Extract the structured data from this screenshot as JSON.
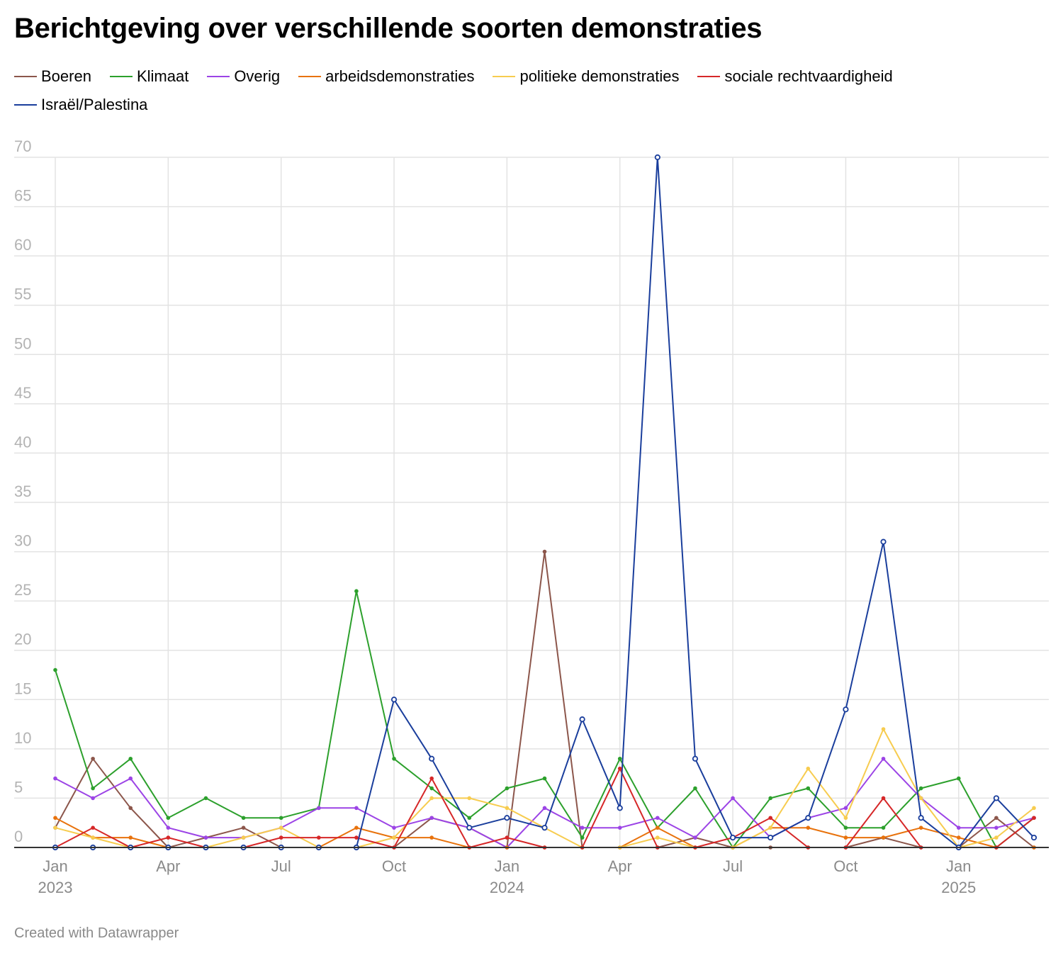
{
  "title": "Berichtgeving over verschillende soorten demonstraties",
  "footer": "Created with Datawrapper",
  "chart_data": {
    "type": "line",
    "title": "Berichtgeving over verschillende soorten demonstraties",
    "xlabel": "",
    "ylabel": "",
    "ylim": [
      0,
      70
    ],
    "yticks": [
      0,
      5,
      10,
      15,
      20,
      25,
      30,
      35,
      40,
      45,
      50,
      55,
      60,
      65,
      70
    ],
    "grid": true,
    "legend_position": "top-left",
    "x": [
      "2023-01",
      "2023-02",
      "2023-03",
      "2023-04",
      "2023-05",
      "2023-06",
      "2023-07",
      "2023-08",
      "2023-09",
      "2023-10",
      "2023-11",
      "2023-12",
      "2024-01",
      "2024-02",
      "2024-03",
      "2024-04",
      "2024-05",
      "2024-06",
      "2024-07",
      "2024-08",
      "2024-09",
      "2024-10",
      "2024-11",
      "2024-12",
      "2025-01",
      "2025-02",
      "2025-03"
    ],
    "xticks": [
      {
        "x": "2023-01",
        "label": "Jan",
        "year": "2023"
      },
      {
        "x": "2023-04",
        "label": "Apr",
        "year": ""
      },
      {
        "x": "2023-07",
        "label": "Jul",
        "year": ""
      },
      {
        "x": "2023-10",
        "label": "Oct",
        "year": ""
      },
      {
        "x": "2024-01",
        "label": "Jan",
        "year": "2024"
      },
      {
        "x": "2024-04",
        "label": "Apr",
        "year": ""
      },
      {
        "x": "2024-07",
        "label": "Jul",
        "year": ""
      },
      {
        "x": "2024-10",
        "label": "Oct",
        "year": ""
      },
      {
        "x": "2025-01",
        "label": "Jan",
        "year": "2025"
      }
    ],
    "series": [
      {
        "name": "Boeren",
        "color": "#8c564b",
        "hollow": false,
        "values": [
          2,
          9,
          4,
          0,
          1,
          2,
          0,
          0,
          0,
          0,
          3,
          2,
          0,
          30,
          0,
          0,
          0,
          1,
          0,
          0,
          0,
          0,
          1,
          0,
          0,
          3,
          0
        ]
      },
      {
        "name": "Klimaat",
        "color": "#2ca02c",
        "hollow": false,
        "values": [
          18,
          6,
          9,
          3,
          5,
          3,
          3,
          4,
          26,
          9,
          6,
          3,
          6,
          7,
          1,
          9,
          2,
          6,
          0,
          5,
          6,
          2,
          2,
          6,
          7,
          0,
          3
        ]
      },
      {
        "name": "Overig",
        "color": "#9c44e6",
        "hollow": false,
        "values": [
          7,
          5,
          7,
          2,
          1,
          1,
          2,
          4,
          4,
          2,
          3,
          2,
          0,
          4,
          2,
          2,
          3,
          1,
          5,
          1,
          3,
          4,
          9,
          5,
          2,
          2,
          3
        ]
      },
      {
        "name": "arbeidsdemonstraties",
        "color": "#e8720c",
        "hollow": false,
        "values": [
          3,
          1,
          1,
          0,
          0,
          0,
          0,
          0,
          2,
          1,
          1,
          0,
          0,
          0,
          0,
          0,
          2,
          0,
          0,
          2,
          2,
          1,
          1,
          2,
          1,
          0,
          0
        ]
      },
      {
        "name": "politieke demonstraties",
        "color": "#f7cc4f",
        "hollow": false,
        "values": [
          2,
          1,
          0,
          0,
          0,
          1,
          2,
          0,
          0,
          1,
          5,
          5,
          4,
          2,
          0,
          0,
          1,
          0,
          0,
          2,
          8,
          3,
          12,
          5,
          0,
          1,
          4
        ]
      },
      {
        "name": "sociale rechtvaardigheid",
        "color": "#d62728",
        "hollow": false,
        "values": [
          0,
          2,
          0,
          1,
          0,
          0,
          1,
          1,
          1,
          0,
          7,
          0,
          1,
          0,
          0,
          8,
          0,
          0,
          1,
          3,
          0,
          0,
          5,
          0,
          0,
          0,
          3
        ]
      },
      {
        "name": "Israël/Palestina",
        "color": "#1a3e9c",
        "hollow": true,
        "values": [
          0,
          0,
          0,
          0,
          0,
          0,
          0,
          0,
          0,
          15,
          9,
          2,
          3,
          2,
          13,
          4,
          70,
          9,
          1,
          1,
          3,
          14,
          31,
          3,
          0,
          5,
          1
        ]
      }
    ]
  }
}
